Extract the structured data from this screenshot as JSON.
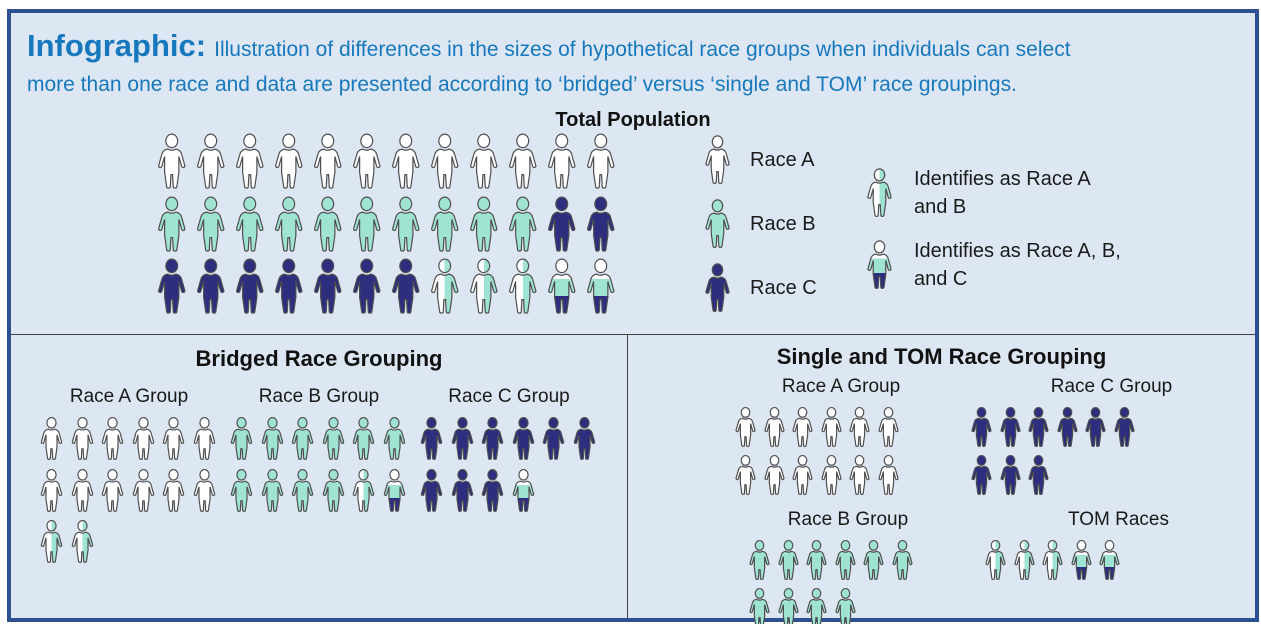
{
  "title": {
    "lead": "Infographic:",
    "line1": "Illustration of differences in the sizes of hypothetical race groups when individuals can select",
    "line2": "more than one race and data are presented according to ‘bridged’ versus ‘single and TOM’ race groupings."
  },
  "total_population": {
    "heading": "Total Population",
    "rows": [
      [
        "A",
        "A",
        "A",
        "A",
        "A",
        "A",
        "A",
        "A",
        "A",
        "A",
        "A",
        "A"
      ],
      [
        "B",
        "B",
        "B",
        "B",
        "B",
        "B",
        "B",
        "B",
        "B",
        "B",
        "C",
        "C"
      ],
      [
        "C",
        "C",
        "C",
        "C",
        "C",
        "C",
        "C",
        "AB",
        "AB",
        "AB",
        "ABC",
        "ABC"
      ]
    ]
  },
  "legend": {
    "items": [
      {
        "icon": "A",
        "label": "Race A"
      },
      {
        "icon": "B",
        "label": "Race B"
      },
      {
        "icon": "C",
        "label": "Race C"
      }
    ],
    "multi_items": [
      {
        "icon": "AB",
        "label": "Identifies as Race A\nand B"
      },
      {
        "icon": "ABC",
        "label": "Identifies as Race A, B,\nand C"
      }
    ]
  },
  "bridged": {
    "heading": "Bridged Race Grouping",
    "groups": [
      {
        "label": "Race A Group",
        "rows": [
          [
            "A",
            "A",
            "A",
            "A",
            "A",
            "A"
          ],
          [
            "A",
            "A",
            "A",
            "A",
            "A",
            "A"
          ],
          [
            "AB",
            "AB"
          ]
        ]
      },
      {
        "label": "Race B Group",
        "rows": [
          [
            "B",
            "B",
            "B",
            "B",
            "B",
            "B"
          ],
          [
            "B",
            "B",
            "B",
            "B",
            "AB",
            "ABC"
          ]
        ]
      },
      {
        "label": "Race C Group",
        "rows": [
          [
            "C",
            "C",
            "C",
            "C",
            "C",
            "C"
          ],
          [
            "C",
            "C",
            "C",
            "ABC"
          ]
        ]
      }
    ]
  },
  "single_tom": {
    "heading": "Single and TOM Race Grouping",
    "groups": [
      {
        "label": "Race A Group",
        "rows": [
          [
            "A",
            "A",
            "A",
            "A",
            "A",
            "A"
          ],
          [
            "A",
            "A",
            "A",
            "A",
            "A",
            "A"
          ]
        ]
      },
      {
        "label": "Race C Group",
        "rows": [
          [
            "C",
            "C",
            "C",
            "C",
            "C",
            "C"
          ],
          [
            "C",
            "C",
            "C"
          ]
        ]
      },
      {
        "label": "Race B Group",
        "rows": [
          [
            "B",
            "B",
            "B",
            "B",
            "B",
            "B"
          ],
          [
            "B",
            "B",
            "B",
            "B"
          ]
        ]
      },
      {
        "label": "TOM Races",
        "rows": [
          [
            "AB",
            "AB",
            "AB",
            "ABC",
            "ABC"
          ]
        ]
      }
    ]
  },
  "chart_data": {
    "type": "pictograph",
    "unit": "1 icon = 1 person",
    "total_population_counts": {
      "race_a": 12,
      "race_b": 10,
      "race_c": 9,
      "race_a_and_b": 3,
      "race_a_b_and_c": 2,
      "total": 36
    },
    "bridged_counts": {
      "race_a_group": 14,
      "race_b_group": 12,
      "race_c_group": 10
    },
    "single_and_tom_counts": {
      "race_a_group": 12,
      "race_b_group": 10,
      "race_c_group": 9,
      "tom_races": 5
    }
  },
  "colors": {
    "race_a": "#ffffff",
    "race_b": "#9fe3d2",
    "race_c": "#2e2e7e",
    "figure_outline": "#4f4f4f",
    "accent_blue": "#1778be",
    "background": "#dde7f3",
    "border": "#2d5092"
  }
}
